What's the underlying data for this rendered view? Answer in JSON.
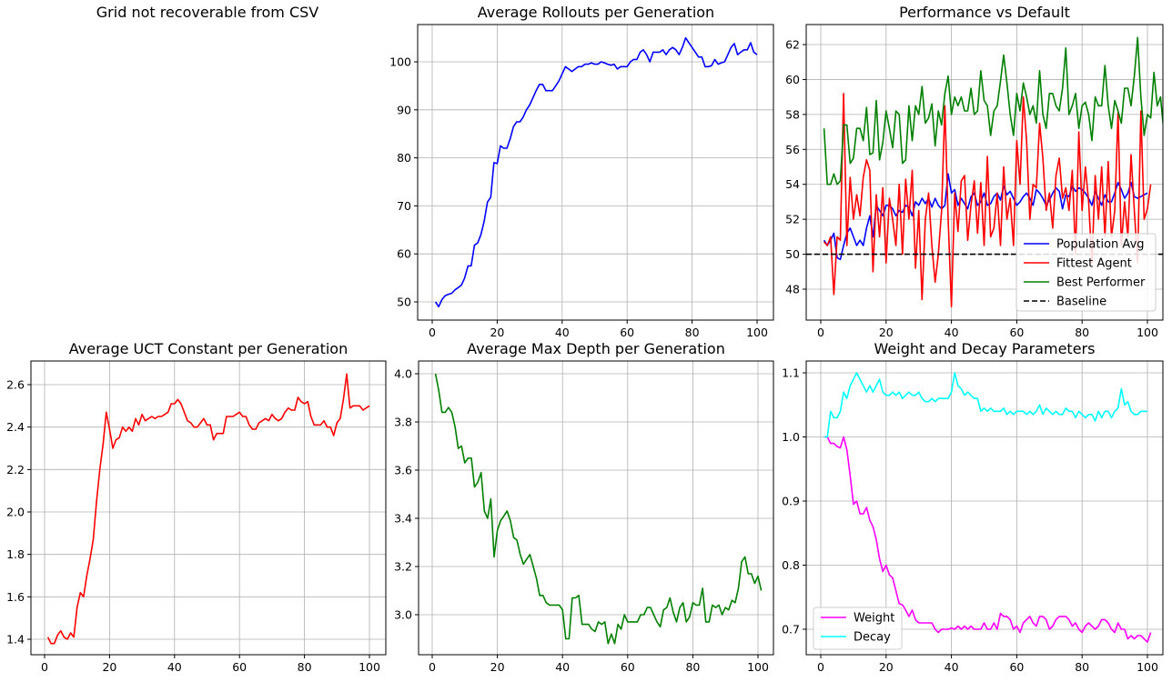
{
  "chart_data": [
    {
      "id": "p0",
      "type": "text",
      "title": "Grid not recoverable from CSV"
    },
    {
      "id": "p1",
      "type": "line",
      "title": "Average Rollouts per Generation",
      "xlim": [
        0,
        100
      ],
      "ylim": [
        50,
        100
      ],
      "grid": true,
      "x_ticks": [
        0,
        20,
        40,
        60,
        80,
        100
      ],
      "y_ticks": [
        50,
        60,
        70,
        80,
        90,
        100
      ],
      "series": [
        {
          "color": "#0000ff",
          "values": [
            50,
            49,
            50.5,
            51.3,
            51.6,
            51.8,
            52.5,
            53,
            53.5,
            55,
            57.5,
            57.5,
            61.8,
            62.3,
            64,
            66.8,
            70.8,
            71.8,
            79,
            78.8,
            82.5,
            82,
            82,
            84,
            86.5,
            87.5,
            87.5,
            88.5,
            90,
            91,
            92.5,
            94,
            95.3,
            95.3,
            94,
            94,
            94,
            95,
            96,
            97.5,
            99,
            98.5,
            98,
            98.5,
            99,
            99,
            99.5,
            99.5,
            99.8,
            99.5,
            99.5,
            100,
            99.8,
            99.5,
            99.3,
            99.5,
            98.5,
            99,
            99,
            99,
            100,
            100.5,
            100.5,
            102,
            102.5,
            101.5,
            100,
            102,
            102,
            102,
            102.5,
            101.5,
            102.5,
            103,
            102.5,
            101.5,
            103,
            105,
            104,
            103,
            102,
            101,
            101,
            99,
            99,
            99.2,
            100.5,
            99.5,
            99.8,
            100,
            101.5,
            103,
            103.8,
            101.5,
            102,
            102.5,
            102.5,
            104,
            102,
            101.5
          ]
        }
      ]
    },
    {
      "id": "p2",
      "type": "line",
      "title": "Performance vs Default",
      "xlim": [
        0,
        100
      ],
      "ylim": [
        48,
        62
      ],
      "grid": true,
      "legend": "lower-right",
      "x_ticks": [
        0,
        20,
        40,
        60,
        80,
        100
      ],
      "y_ticks": [
        48,
        50,
        52,
        54,
        56,
        58,
        60,
        62
      ],
      "series": [
        {
          "name": "Population Avg",
          "color": "#0000ff",
          "values": [
            50.8,
            50.5,
            50.8,
            51.2,
            49.8,
            49.7,
            50.5,
            51.2,
            51.5,
            51,
            50.5,
            50.8,
            50.5,
            51.5,
            52.2,
            51,
            52.8,
            52.5,
            52.2,
            52.8,
            52.8,
            52.6,
            52.2,
            52.5,
            52.4,
            52.8,
            52.7,
            52.2,
            53,
            52.8,
            53.2,
            52.9,
            53.2,
            52.7,
            53.2,
            52.8,
            52.6,
            52.8,
            54.6,
            53.5,
            53.7,
            52.8,
            53.2,
            52.9,
            52.6,
            53.3,
            53.5,
            52.8,
            53,
            53.5,
            52.8,
            52.9,
            53.3,
            53.5,
            53.1,
            53.9,
            53.4,
            53.6,
            53.2,
            52.8,
            53,
            53.3,
            53.5,
            53.2,
            52.8,
            53.7,
            53.5,
            53.2,
            52.8,
            53.1,
            53.5,
            53.8,
            53.6,
            52.6,
            53.4,
            53.3,
            53.9,
            53.6,
            53.8,
            53.7,
            53.5,
            53.2,
            52.8,
            53.6,
            53.2,
            52.8,
            53.4,
            53,
            53,
            53.5,
            54.1,
            53.7,
            53.2,
            53.5,
            54.1,
            53.3,
            53.2,
            53.3,
            53.4,
            53.5
          ]
        },
        {
          "name": "Fittest Agent",
          "color": "#ff0000",
          "values": [
            50.7,
            50.5,
            51,
            47.7,
            51,
            50.8,
            59.2,
            50.5,
            54.4,
            52,
            53.4,
            52.2,
            54.4,
            55.4,
            54.8,
            49,
            53.4,
            51,
            53.8,
            49.5,
            53.2,
            52,
            50.5,
            54,
            50,
            54.3,
            52,
            54.8,
            49.2,
            52.5,
            47.4,
            52,
            53.5,
            50.5,
            48.4,
            50,
            52.5,
            58.5,
            52,
            47,
            53.5,
            51.3,
            54.2,
            54.5,
            50.8,
            52.8,
            54.2,
            51.2,
            54.1,
            50.5,
            55.6,
            51,
            51.5,
            53.5,
            50.5,
            55,
            52,
            53.2,
            50.5,
            56.5,
            54,
            59,
            56.5,
            52,
            54,
            53.8,
            57.5,
            55.5,
            52.5,
            53.5,
            51.5,
            54.5,
            55.5,
            53.2,
            53.8,
            52.5,
            54.8,
            50,
            57,
            52.5,
            55,
            53,
            49.5,
            54.5,
            52,
            55,
            51,
            55.3,
            51,
            52.5,
            58.1,
            50.5,
            53,
            51,
            55.7,
            52.5,
            49.5,
            58.2,
            52,
            52.6,
            54
          ]
        },
        {
          "name": "Best Performer",
          "color": "#008000",
          "values": [
            57.2,
            54,
            54,
            54.6,
            54,
            54.2,
            57.4,
            57.4,
            55.2,
            55.5,
            57.2,
            57.2,
            56.5,
            58.4,
            55.7,
            55.8,
            58.8,
            55.4,
            56.4,
            58.2,
            57.2,
            56.1,
            58.2,
            58,
            55.2,
            55.4,
            58.5,
            56.5,
            58.5,
            58,
            59.6,
            57.5,
            57.8,
            58.6,
            56.2,
            58.2,
            57.4,
            59.2,
            60.2,
            58,
            59,
            58.5,
            59,
            58.2,
            58.2,
            59.5,
            58,
            58.2,
            60.5,
            58.8,
            58.5,
            56.8,
            58.2,
            58.5,
            59.9,
            61.4,
            59.8,
            58,
            56.8,
            59.2,
            58.2,
            59.8,
            59,
            58,
            58.5,
            57.5,
            60.5,
            58,
            57.2,
            59.2,
            59.2,
            58.5,
            58.2,
            59.5,
            61.8,
            58,
            58.5,
            59.2,
            57.2,
            58.5,
            58.7,
            58,
            56.5,
            59,
            58.5,
            58.5,
            60.8,
            58.5,
            57.2,
            58.8,
            58.2,
            57.5,
            59.5,
            59.5,
            58.5,
            60.2,
            62.4,
            59,
            56.8,
            58,
            57.8,
            60.4,
            58.5,
            59,
            57,
            59
          ]
        },
        {
          "name": "Baseline",
          "color": "#000000",
          "dash": true,
          "values": [
            50,
            50
          ]
        }
      ]
    },
    {
      "id": "p3",
      "type": "line",
      "title": "Average UCT Constant per Generation",
      "xlim": [
        0,
        100
      ],
      "ylim": [
        1.4,
        2.6
      ],
      "grid": true,
      "x_ticks": [
        0,
        20,
        40,
        60,
        80,
        100
      ],
      "y_ticks": [
        1.4,
        1.6,
        1.8,
        2.0,
        2.2,
        2.4,
        2.6
      ],
      "series": [
        {
          "color": "#ff0000",
          "values": [
            1.41,
            1.38,
            1.38,
            1.42,
            1.44,
            1.41,
            1.4,
            1.43,
            1.41,
            1.55,
            1.62,
            1.6,
            1.7,
            1.78,
            1.87,
            2.05,
            2.2,
            2.32,
            2.47,
            2.39,
            2.3,
            2.34,
            2.35,
            2.4,
            2.38,
            2.4,
            2.38,
            2.44,
            2.41,
            2.46,
            2.43,
            2.44,
            2.45,
            2.44,
            2.45,
            2.45,
            2.46,
            2.47,
            2.51,
            2.51,
            2.53,
            2.51,
            2.47,
            2.43,
            2.42,
            2.4,
            2.4,
            2.42,
            2.44,
            2.41,
            2.41,
            2.34,
            2.37,
            2.37,
            2.37,
            2.45,
            2.45,
            2.45,
            2.46,
            2.47,
            2.45,
            2.45,
            2.41,
            2.39,
            2.39,
            2.42,
            2.43,
            2.44,
            2.43,
            2.46,
            2.44,
            2.43,
            2.44,
            2.47,
            2.49,
            2.48,
            2.48,
            2.54,
            2.52,
            2.51,
            2.52,
            2.45,
            2.41,
            2.41,
            2.41,
            2.43,
            2.4,
            2.4,
            2.36,
            2.42,
            2.44,
            2.53,
            2.65,
            2.49,
            2.5,
            2.5,
            2.5,
            2.48,
            2.49,
            2.5
          ]
        }
      ]
    },
    {
      "id": "p4",
      "type": "line",
      "title": "Average Max Depth per Generation",
      "xlim": [
        0,
        100
      ],
      "ylim": [
        3.0,
        4.0
      ],
      "grid": true,
      "x_ticks": [
        0,
        20,
        40,
        60,
        80,
        100
      ],
      "y_ticks": [
        3.0,
        3.2,
        3.4,
        3.6,
        3.8,
        4.0
      ],
      "series": [
        {
          "color": "#008000",
          "values": [
            4.0,
            3.93,
            3.84,
            3.84,
            3.86,
            3.84,
            3.78,
            3.69,
            3.7,
            3.63,
            3.65,
            3.65,
            3.53,
            3.55,
            3.59,
            3.43,
            3.4,
            3.48,
            3.24,
            3.35,
            3.39,
            3.41,
            3.43,
            3.39,
            3.32,
            3.31,
            3.25,
            3.21,
            3.23,
            3.25,
            3.2,
            3.15,
            3.08,
            3.08,
            3.05,
            3.04,
            3.04,
            3.04,
            3.04,
            3.02,
            2.9,
            2.9,
            3.07,
            3.07,
            3.08,
            2.96,
            2.96,
            2.96,
            2.94,
            2.93,
            2.97,
            2.96,
            2.97,
            2.88,
            2.92,
            2.88,
            2.96,
            2.94,
            3.0,
            2.97,
            2.97,
            2.97,
            2.97,
            3.0,
            3.0,
            3.03,
            3.03,
            3.0,
            2.97,
            2.95,
            3.02,
            3.03,
            3.07,
            3.01,
            2.97,
            3.03,
            3.05,
            2.97,
            2.99,
            3.05,
            3.04,
            3.04,
            3.11,
            2.97,
            2.97,
            3.04,
            3.03,
            3.04,
            3.0,
            3.03,
            3.02,
            3.06,
            3.05,
            3.11,
            3.22,
            3.24,
            3.17,
            3.17,
            3.13,
            3.16,
            3.1
          ]
        }
      ]
    },
    {
      "id": "p5",
      "type": "line",
      "title": "Weight and Decay Parameters",
      "xlim": [
        0,
        100
      ],
      "ylim": [
        0.7,
        1.1
      ],
      "grid": true,
      "legend": "lower-left",
      "x_ticks": [
        0,
        20,
        40,
        60,
        80,
        100
      ],
      "y_ticks": [
        0.7,
        0.8,
        0.9,
        1.0,
        1.1
      ],
      "series": [
        {
          "name": "Weight",
          "color": "#ff00ff",
          "values": [
            1.0,
            1.0,
            0.99,
            0.99,
            0.985,
            0.983,
            1.0,
            0.98,
            0.94,
            0.895,
            0.9,
            0.88,
            0.88,
            0.89,
            0.87,
            0.86,
            0.84,
            0.81,
            0.79,
            0.8,
            0.785,
            0.78,
            0.76,
            0.74,
            0.738,
            0.73,
            0.72,
            0.73,
            0.715,
            0.71,
            0.71,
            0.71,
            0.71,
            0.71,
            0.7,
            0.695,
            0.7,
            0.7,
            0.7,
            0.702,
            0.7,
            0.705,
            0.7,
            0.705,
            0.7,
            0.705,
            0.7,
            0.7,
            0.7,
            0.71,
            0.7,
            0.7,
            0.71,
            0.7,
            0.725,
            0.72,
            0.72,
            0.715,
            0.7,
            0.705,
            0.695,
            0.71,
            0.715,
            0.72,
            0.71,
            0.705,
            0.72,
            0.72,
            0.715,
            0.7,
            0.705,
            0.715,
            0.72,
            0.72,
            0.72,
            0.715,
            0.705,
            0.71,
            0.7,
            0.695,
            0.705,
            0.71,
            0.705,
            0.7,
            0.705,
            0.715,
            0.715,
            0.71,
            0.7,
            0.695,
            0.71,
            0.7,
            0.7,
            0.685,
            0.69,
            0.685,
            0.69,
            0.69,
            0.685,
            0.68,
            0.695
          ]
        },
        {
          "name": "Decay",
          "color": "#00ffff",
          "values": [
            1.0,
            1.0,
            1.04,
            1.03,
            1.03,
            1.04,
            1.07,
            1.06,
            1.08,
            1.09,
            1.1,
            1.09,
            1.08,
            1.07,
            1.08,
            1.07,
            1.08,
            1.09,
            1.07,
            1.065,
            1.065,
            1.07,
            1.065,
            1.07,
            1.06,
            1.065,
            1.07,
            1.065,
            1.065,
            1.07,
            1.06,
            1.055,
            1.055,
            1.06,
            1.055,
            1.06,
            1.06,
            1.06,
            1.06,
            1.07,
            1.1,
            1.08,
            1.075,
            1.065,
            1.07,
            1.065,
            1.06,
            1.06,
            1.04,
            1.045,
            1.04,
            1.045,
            1.04,
            1.04,
            1.04,
            1.045,
            1.035,
            1.04,
            1.035,
            1.04,
            1.04,
            1.04,
            1.035,
            1.04,
            1.035,
            1.04,
            1.05,
            1.035,
            1.045,
            1.04,
            1.035,
            1.04,
            1.035,
            1.035,
            1.045,
            1.04,
            1.04,
            1.03,
            1.04,
            1.035,
            1.03,
            1.035,
            1.035,
            1.025,
            1.04,
            1.03,
            1.04,
            1.04,
            1.03,
            1.04,
            1.045,
            1.075,
            1.05,
            1.055,
            1.04,
            1.035,
            1.035,
            1.04,
            1.04,
            1.04
          ]
        }
      ]
    }
  ]
}
